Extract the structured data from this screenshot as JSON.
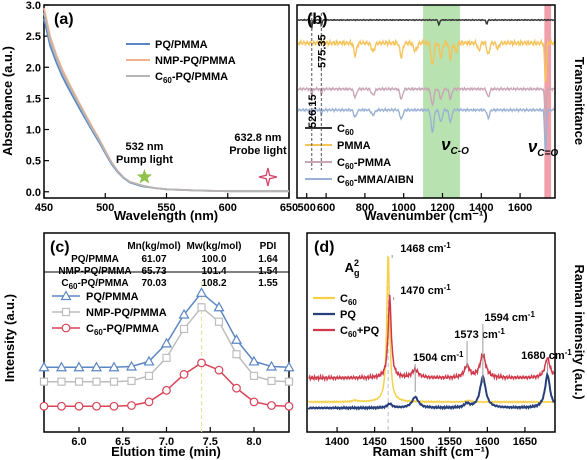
{
  "chart_data": [
    {
      "id": "a",
      "type": "line",
      "panel_label": "(a)",
      "xlabel": "Wavelength (nm)",
      "ylabel": "Absorbance (a.u.)",
      "xlim": [
        450,
        650
      ],
      "ylim": [
        -0.1,
        3.0
      ],
      "xticks": [
        "450",
        "500",
        "550",
        "600",
        "650"
      ],
      "yticks": [
        "0.0",
        "0.5",
        "1.0",
        "1.5",
        "2.0",
        "2.5",
        "3.0"
      ],
      "legend_position": "top-right",
      "series": [
        {
          "name": "PQ/PMMA",
          "color": "#5b86c4",
          "x": [
            450,
            455,
            460,
            465,
            470,
            475,
            480,
            485,
            490,
            495,
            500,
            505,
            510,
            515,
            520,
            530,
            540,
            550,
            575,
            600,
            625,
            650
          ],
          "y": [
            2.78,
            2.35,
            2.08,
            1.85,
            1.66,
            1.48,
            1.3,
            1.13,
            0.96,
            0.8,
            0.62,
            0.45,
            0.32,
            0.22,
            0.15,
            0.09,
            0.06,
            0.04,
            0.02,
            0.01,
            0.01,
            0.01
          ]
        },
        {
          "name": "NMP-PQ/PMMA",
          "color": "#f2b28a",
          "x": [
            450,
            455,
            460,
            465,
            470,
            475,
            480,
            485,
            490,
            495,
            500,
            505,
            510,
            515,
            520,
            530,
            540,
            550,
            575,
            600,
            625,
            650
          ],
          "y": [
            2.95,
            2.5,
            2.2,
            1.96,
            1.76,
            1.57,
            1.38,
            1.2,
            1.02,
            0.85,
            0.66,
            0.48,
            0.34,
            0.23,
            0.16,
            0.1,
            0.06,
            0.04,
            0.02,
            0.01,
            0.01,
            0.01
          ]
        },
        {
          "name": "C60-PQ/PMMA",
          "color": "#b5b5b5",
          "x": [
            450,
            455,
            460,
            465,
            470,
            475,
            480,
            485,
            490,
            495,
            500,
            505,
            510,
            515,
            520,
            530,
            540,
            550,
            575,
            600,
            625,
            650
          ],
          "y": [
            2.88,
            2.43,
            2.15,
            1.91,
            1.72,
            1.53,
            1.35,
            1.17,
            0.99,
            0.83,
            0.64,
            0.47,
            0.33,
            0.23,
            0.16,
            0.1,
            0.06,
            0.04,
            0.02,
            0.01,
            0.01,
            0.01
          ]
        }
      ],
      "legend_entries": [
        {
          "sub": "",
          "rest": "PQ/PMMA"
        },
        {
          "sub": "",
          "rest": "NMP-PQ/PMMA"
        },
        {
          "sub": "60",
          "rest": "-PQ/PMMA"
        }
      ],
      "annotations": [
        {
          "line1": "532 nm",
          "line2": "Pump light",
          "x": 532,
          "color": "#a8c94a",
          "marker": "star"
        },
        {
          "line1": "632.8 nm",
          "line2": "Probe light",
          "x": 632.8,
          "color": "#d4436a",
          "marker": "sparkle"
        }
      ]
    },
    {
      "id": "b",
      "type": "line",
      "panel_label": "(b)",
      "xlabel": "Wavenumber (cm⁻¹)",
      "ylabel": "Transmittance",
      "xlim": [
        450,
        1780
      ],
      "xticks": [
        "500",
        "600",
        "800",
        "1000",
        "1200",
        "1400",
        "1600"
      ],
      "legend_position": "bottom-left",
      "series": [
        {
          "name": "C60",
          "color": "#333333"
        },
        {
          "name": "PMMA",
          "color": "#f5c35a"
        },
        {
          "name": "C60-PMMA",
          "color": "#c8a6b6"
        },
        {
          "name": "C60-MMA/AIBN",
          "color": "#9bb2d6"
        }
      ],
      "legend_entries": [
        {
          "sub": "60",
          "rest": ""
        },
        {
          "sub": "",
          "rest": "PMMA"
        },
        {
          "sub": "60",
          "rest": "-PMMA"
        },
        {
          "sub": "60",
          "rest": "-MMA/AIBN"
        }
      ],
      "highlight_bands": [
        {
          "range": [
            1100,
            1290
          ],
          "color": "#b8e2b0",
          "label": "C-O"
        },
        {
          "range": [
            1725,
            1760
          ],
          "color": "#f0a0aa",
          "label": "C=O"
        }
      ],
      "peak_labels": [
        "526.15",
        "575.35"
      ]
    },
    {
      "id": "c",
      "type": "line",
      "panel_label": "(c)",
      "xlabel": "Elution time (min)",
      "ylabel": "Intensity (a.u.)",
      "xlim": [
        5.6,
        8.4
      ],
      "xticks": [
        "6.0",
        "6.5",
        "7.0",
        "7.5",
        "8.0"
      ],
      "legend_position": "top-left",
      "x": [
        5.6,
        5.8,
        6.0,
        6.2,
        6.4,
        6.6,
        6.8,
        7.0,
        7.2,
        7.4,
        7.6,
        7.8,
        8.0,
        8.2,
        8.4
      ],
      "series": [
        {
          "name": "PQ/PMMA",
          "color": "#5b86c4",
          "marker": "triangle",
          "values": [
            0.62,
            0.62,
            0.62,
            0.62,
            0.62,
            0.63,
            0.7,
            0.95,
            1.35,
            1.65,
            1.45,
            1.0,
            0.7,
            0.63,
            0.62
          ]
        },
        {
          "name": "NMP-PQ/PMMA",
          "color": "#bdbdbd",
          "marker": "square",
          "values": [
            0.42,
            0.42,
            0.42,
            0.42,
            0.42,
            0.43,
            0.5,
            0.75,
            1.15,
            1.45,
            1.25,
            0.8,
            0.5,
            0.43,
            0.42
          ]
        },
        {
          "name": "C60-PQ/PMMA",
          "color": "#d94356",
          "marker": "circle",
          "values": [
            0.08,
            0.08,
            0.08,
            0.08,
            0.08,
            0.09,
            0.14,
            0.3,
            0.52,
            0.68,
            0.58,
            0.33,
            0.14,
            0.09,
            0.08
          ]
        }
      ],
      "legend_entries": [
        {
          "sub": "",
          "rest": "PQ/PMMA"
        },
        {
          "sub": "",
          "rest": "NMP-PQ/PMMA"
        },
        {
          "sub": "60",
          "rest": "-PQ/PMMA"
        }
      ],
      "table": {
        "headers": [
          "Mn(kg/mol)",
          "Mw(kg/mol)",
          "PDI"
        ],
        "rows": [
          {
            "name": "PQ/PMMA",
            "sub": "",
            "rest": "PQ/PMMA",
            "color": "#5b86c4",
            "mn": "61.07",
            "mw": "100.0",
            "pdi": "1.64"
          },
          {
            "name": "NMP-PQ/PMMA",
            "sub": "",
            "rest": "NMP-PQ/PMMA",
            "color": "#bdbdbd",
            "mn": "65.73",
            "mw": "101.4",
            "pdi": "1.54"
          },
          {
            "name": "C60-PQ/PMMA",
            "sub": "60",
            "rest": "-PQ/PMMA",
            "color": "#d94356",
            "mn": "70.03",
            "mw": "108.2",
            "pdi": "1.55"
          }
        ]
      },
      "peak_marker_x": 7.4
    },
    {
      "id": "d",
      "type": "line",
      "panel_label": "(d)",
      "xlabel": "Raman shift (cm⁻¹)",
      "ylabel": "Raman intensity (a.u.)",
      "xlim": [
        1360,
        1690
      ],
      "xticks": [
        "1400",
        "1450",
        "1500",
        "1550",
        "1600",
        "1650"
      ],
      "legend_position": "center-left",
      "series": [
        {
          "name": "C60",
          "color": "#f7d04a"
        },
        {
          "name": "PQ",
          "color": "#27407a"
        },
        {
          "name": "C60+PQ",
          "color": "#d0394a"
        }
      ],
      "legend_entries": [
        {
          "sub": "60",
          "rest": ""
        },
        {
          "sub": "",
          "rest": "PQ"
        },
        {
          "sub": "60",
          "rest": "+PQ"
        }
      ],
      "mode_label": {
        "base": "A",
        "sub": "g",
        "sup": "2"
      },
      "peak_labels": [
        {
          "text": "1468 cm",
          "x": 1468
        },
        {
          "text": "1470 cm",
          "x": 1470
        },
        {
          "text": "1504 cm",
          "x": 1504
        },
        {
          "text": "1573 cm",
          "x": 1573
        },
        {
          "text": "1594 cm",
          "x": 1594
        },
        {
          "text": "1680 cm",
          "x": 1680
        }
      ],
      "peak_label_color": "#1f3a7a",
      "unit_sup": "-1"
    }
  ]
}
